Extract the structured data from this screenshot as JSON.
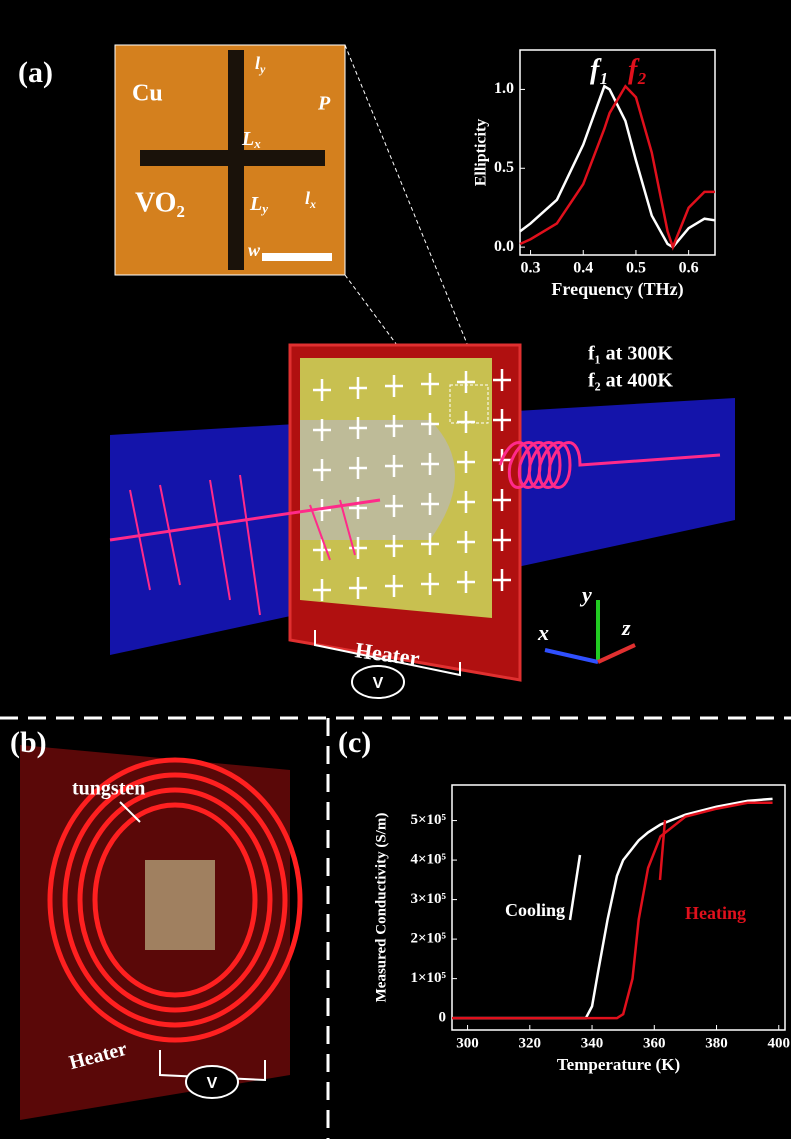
{
  "panels": {
    "a": "(a)",
    "b": "(b)",
    "c": "(c)"
  },
  "inset": {
    "material": "Cu",
    "vo2": "VO₂",
    "ly": "l",
    "ly_sub": "y",
    "Lx": "L",
    "Lx_sub": "x",
    "P": "P",
    "Ly": "L",
    "Ly_sub": "y",
    "lx": "l",
    "lx_sub": "x",
    "w": "w"
  },
  "annotations": {
    "f1_temp": "f₁ at 300K",
    "f2_temp": "f₂ at 400K",
    "heater_a": "Heater",
    "volt_a": "V",
    "axis_x": "x",
    "axis_y": "y",
    "axis_z": "z",
    "tungsten": "tungsten",
    "heater_b": "Heater",
    "volt_b": "V"
  },
  "chart_data": [
    {
      "type": "line",
      "x_label": "Frequency (THz)",
      "y_label": "Ellipticity",
      "x": [
        0.28,
        0.3,
        0.35,
        0.4,
        0.44,
        0.45,
        0.48,
        0.5,
        0.53,
        0.56,
        0.57,
        0.6,
        0.63,
        0.65
      ],
      "series": [
        {
          "name": "f₁",
          "color": "#ffffff",
          "values": [
            0.1,
            0.15,
            0.3,
            0.65,
            1.02,
            1.0,
            0.8,
            0.55,
            0.2,
            0.02,
            0.0,
            0.12,
            0.18,
            0.17
          ]
        },
        {
          "name": "f₂",
          "color": "#e0101c",
          "values": [
            0.02,
            0.05,
            0.15,
            0.4,
            0.75,
            0.85,
            1.02,
            0.95,
            0.6,
            0.1,
            0.0,
            0.25,
            0.35,
            0.35
          ]
        }
      ],
      "xlim": [
        0.28,
        0.65
      ],
      "ylim": [
        -0.05,
        1.25
      ],
      "xticks": [
        0.3,
        0.4,
        0.5,
        0.6
      ],
      "yticks": [
        {
          "value": 0,
          "label": "0.0"
        },
        0.5,
        {
          "value": 1,
          "label": "1.0"
        }
      ]
    },
    {
      "type": "line",
      "x_label": "Temperature (K)",
      "y_label": "Measured Conductivity (S/m)",
      "x": [
        295,
        338,
        340,
        342,
        345,
        348,
        350,
        353,
        355,
        358,
        362,
        370,
        380,
        390,
        398
      ],
      "series": [
        {
          "name": "Cooling",
          "color": "#ffffff",
          "values": [
            0,
            0,
            30000,
            120000,
            250000,
            360000,
            400000,
            430000,
            450000,
            470000,
            490000,
            515000,
            535000,
            550000,
            555000
          ]
        },
        {
          "name": "Heating",
          "color": "#e0101c",
          "values": [
            0,
            0,
            0,
            0,
            0,
            0,
            10000,
            100000,
            250000,
            380000,
            460000,
            510000,
            530000,
            545000,
            545000
          ]
        }
      ],
      "xlim": [
        295,
        402
      ],
      "ylim": [
        -30000,
        590000
      ],
      "xticks": [
        300,
        320,
        340,
        360,
        380,
        400
      ],
      "yticks": [
        0,
        {
          "value": 100000,
          "label": "1×10⁵"
        },
        {
          "value": 200000,
          "label": "2×10⁵"
        },
        {
          "value": 300000,
          "label": "3×10⁵"
        },
        {
          "value": 400000,
          "label": "4×10⁵"
        },
        {
          "value": 500000,
          "label": "5×10⁵"
        }
      ]
    }
  ]
}
